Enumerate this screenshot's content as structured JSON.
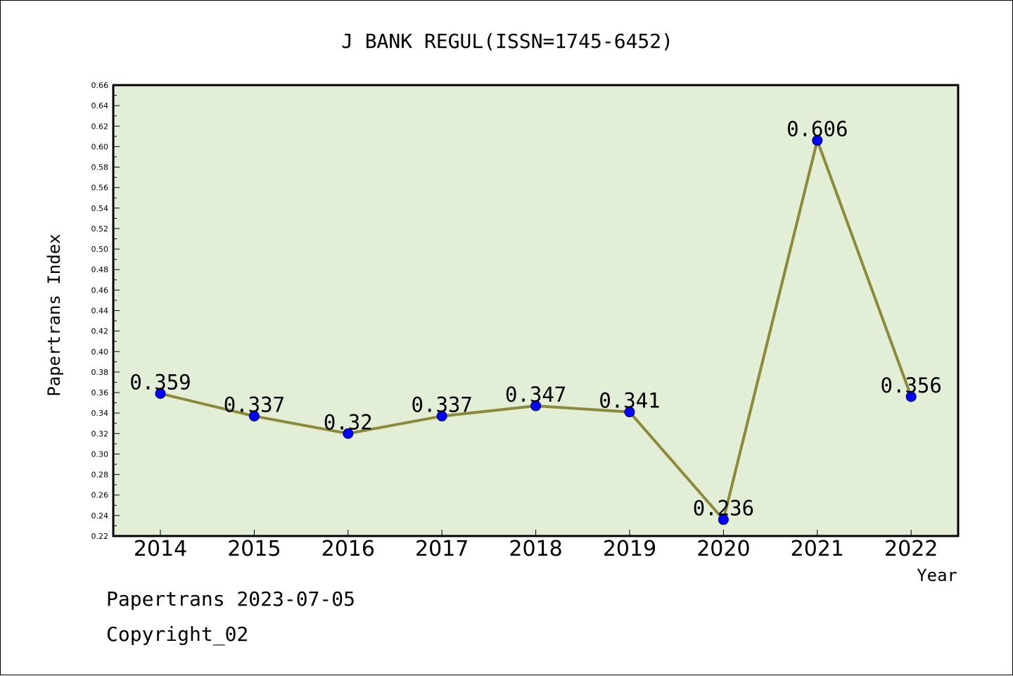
{
  "chart_data": {
    "type": "line",
    "title": "J BANK REGUL(ISSN=1745-6452)",
    "xlabel": "Year",
    "ylabel": "Papertrans Index",
    "categories": [
      "2014",
      "2015",
      "2016",
      "2017",
      "2018",
      "2019",
      "2020",
      "2021",
      "2022"
    ],
    "series": [
      {
        "values": [
          0.359,
          0.337,
          0.32,
          0.337,
          0.347,
          0.341,
          0.236,
          0.606,
          0.356
        ],
        "labels": [
          "0.359",
          "0.337",
          "0.32",
          "0.337",
          "0.347",
          "0.341",
          "0.236",
          "0.606",
          "0.356"
        ],
        "line_color": "#8c8a3a",
        "marker_color": "#0000ff"
      }
    ],
    "ylim": [
      0.22,
      0.66
    ],
    "yticks": [
      "0.22",
      "0.24",
      "0.26",
      "0.28",
      "0.30",
      "0.32",
      "0.34",
      "0.36",
      "0.38",
      "0.40",
      "0.42",
      "0.44",
      "0.46",
      "0.48",
      "0.50",
      "0.52",
      "0.54",
      "0.56",
      "0.58",
      "0.60",
      "0.62",
      "0.64",
      "0.66"
    ],
    "plot_background": "#e2efd6",
    "grid": false
  },
  "footer": {
    "line1": "Papertrans 2023-07-05",
    "line2": "Copyright_02"
  }
}
